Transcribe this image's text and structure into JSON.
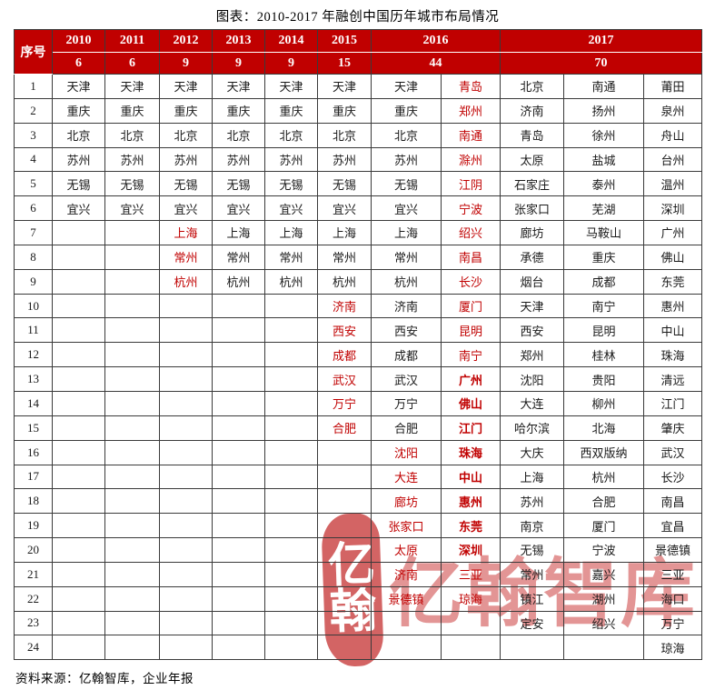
{
  "title": "图表：2010-2017 年融创中国历年城市布局情况",
  "source": "资料来源：亿翰智库，企业年报",
  "watermark": {
    "emblem_line1": "亿",
    "emblem_line2": "翰",
    "text": "亿翰智库"
  },
  "colors": {
    "header_bg": "#c00000",
    "header_text": "#ffffff",
    "new_city_red": "#c00000",
    "body_text": "#1a1a1a",
    "watermark_red": "rgba(202,52,52,0.52)"
  },
  "table": {
    "corner_label": "序号",
    "year_groups": [
      {
        "label": "2010",
        "count": "6",
        "span": 1
      },
      {
        "label": "2011",
        "count": "6",
        "span": 1
      },
      {
        "label": "2012",
        "count": "9",
        "span": 1
      },
      {
        "label": "2013",
        "count": "9",
        "span": 1
      },
      {
        "label": "2014",
        "count": "9",
        "span": 1
      },
      {
        "label": "2015",
        "count": "15",
        "span": 1
      },
      {
        "label": "2016",
        "count": "44",
        "span": 2
      },
      {
        "label": "2017",
        "count": "70",
        "span": 3
      }
    ],
    "rows": [
      {
        "no": "1",
        "cells": [
          "天津",
          "天津",
          "天津",
          "天津",
          "天津",
          "天津",
          "天津",
          {
            "t": "青岛",
            "red": true
          },
          "北京",
          "南通",
          "莆田"
        ]
      },
      {
        "no": "2",
        "cells": [
          "重庆",
          "重庆",
          "重庆",
          "重庆",
          "重庆",
          "重庆",
          "重庆",
          {
            "t": "郑州",
            "red": true
          },
          "济南",
          "扬州",
          "泉州"
        ]
      },
      {
        "no": "3",
        "cells": [
          "北京",
          "北京",
          "北京",
          "北京",
          "北京",
          "北京",
          "北京",
          {
            "t": "南通",
            "red": true
          },
          "青岛",
          "徐州",
          "舟山"
        ]
      },
      {
        "no": "4",
        "cells": [
          "苏州",
          "苏州",
          "苏州",
          "苏州",
          "苏州",
          "苏州",
          "苏州",
          {
            "t": "滁州",
            "red": true
          },
          "太原",
          "盐城",
          "台州"
        ]
      },
      {
        "no": "5",
        "cells": [
          "无锡",
          "无锡",
          "无锡",
          "无锡",
          "无锡",
          "无锡",
          "无锡",
          {
            "t": "江阴",
            "red": true
          },
          "石家庄",
          "泰州",
          "温州"
        ]
      },
      {
        "no": "6",
        "cells": [
          "宜兴",
          "宜兴",
          "宜兴",
          "宜兴",
          "宜兴",
          "宜兴",
          "宜兴",
          {
            "t": "宁波",
            "red": true
          },
          "张家口",
          "芜湖",
          "深圳"
        ]
      },
      {
        "no": "7",
        "cells": [
          "",
          "",
          {
            "t": "上海",
            "red": true
          },
          "上海",
          "上海",
          "上海",
          "上海",
          {
            "t": "绍兴",
            "red": true
          },
          "廊坊",
          "马鞍山",
          "广州"
        ]
      },
      {
        "no": "8",
        "cells": [
          "",
          "",
          {
            "t": "常州",
            "red": true
          },
          "常州",
          "常州",
          "常州",
          "常州",
          {
            "t": "南昌",
            "red": true
          },
          "承德",
          "重庆",
          "佛山"
        ]
      },
      {
        "no": "9",
        "cells": [
          "",
          "",
          {
            "t": "杭州",
            "red": true
          },
          "杭州",
          "杭州",
          "杭州",
          "杭州",
          {
            "t": "长沙",
            "red": true
          },
          "烟台",
          "成都",
          "东莞"
        ]
      },
      {
        "no": "10",
        "cells": [
          "",
          "",
          "",
          "",
          "",
          {
            "t": "济南",
            "red": true
          },
          "济南",
          {
            "t": "厦门",
            "red": true
          },
          "天津",
          "南宁",
          "惠州"
        ]
      },
      {
        "no": "11",
        "cells": [
          "",
          "",
          "",
          "",
          "",
          {
            "t": "西安",
            "red": true
          },
          "西安",
          {
            "t": "昆明",
            "red": true
          },
          "西安",
          "昆明",
          "中山"
        ]
      },
      {
        "no": "12",
        "cells": [
          "",
          "",
          "",
          "",
          "",
          {
            "t": "成都",
            "red": true
          },
          "成都",
          {
            "t": "南宁",
            "red": true
          },
          "郑州",
          "桂林",
          "珠海"
        ]
      },
      {
        "no": "13",
        "cells": [
          "",
          "",
          "",
          "",
          "",
          {
            "t": "武汉",
            "red": true
          },
          "武汉",
          {
            "t": "广州",
            "red": true,
            "bold": true
          },
          "沈阳",
          "贵阳",
          "清远"
        ]
      },
      {
        "no": "14",
        "cells": [
          "",
          "",
          "",
          "",
          "",
          {
            "t": "万宁",
            "red": true
          },
          "万宁",
          {
            "t": "佛山",
            "red": true,
            "bold": true
          },
          "大连",
          "柳州",
          "江门"
        ]
      },
      {
        "no": "15",
        "cells": [
          "",
          "",
          "",
          "",
          "",
          {
            "t": "合肥",
            "red": true
          },
          "合肥",
          {
            "t": "江门",
            "red": true,
            "bold": true
          },
          "哈尔滨",
          "北海",
          "肇庆"
        ]
      },
      {
        "no": "16",
        "cells": [
          "",
          "",
          "",
          "",
          "",
          "",
          {
            "t": "沈阳",
            "red": true
          },
          {
            "t": "珠海",
            "red": true,
            "bold": true
          },
          "大庆",
          "西双版纳",
          "武汉"
        ]
      },
      {
        "no": "17",
        "cells": [
          "",
          "",
          "",
          "",
          "",
          "",
          {
            "t": "大连",
            "red": true
          },
          {
            "t": "中山",
            "red": true,
            "bold": true
          },
          "上海",
          "杭州",
          "长沙"
        ]
      },
      {
        "no": "18",
        "cells": [
          "",
          "",
          "",
          "",
          "",
          "",
          {
            "t": "廊坊",
            "red": true
          },
          {
            "t": "惠州",
            "red": true,
            "bold": true
          },
          "苏州",
          "合肥",
          "南昌"
        ]
      },
      {
        "no": "19",
        "cells": [
          "",
          "",
          "",
          "",
          "",
          "",
          {
            "t": "张家口",
            "red": true
          },
          {
            "t": "东莞",
            "red": true,
            "bold": true
          },
          "南京",
          "厦门",
          "宜昌"
        ]
      },
      {
        "no": "20",
        "cells": [
          "",
          "",
          "",
          "",
          "",
          "",
          {
            "t": "太原",
            "red": true
          },
          {
            "t": "深圳",
            "red": true,
            "bold": true
          },
          "无锡",
          "宁波",
          "景德镇"
        ]
      },
      {
        "no": "21",
        "cells": [
          "",
          "",
          "",
          "",
          "",
          "",
          {
            "t": "济南",
            "red": true
          },
          {
            "t": "三亚",
            "red": true
          },
          "常州",
          "嘉兴",
          "三亚"
        ]
      },
      {
        "no": "22",
        "cells": [
          "",
          "",
          "",
          "",
          "",
          "",
          {
            "t": "景德镇",
            "red": true
          },
          {
            "t": "琼海",
            "red": true
          },
          "镇江",
          "湖州",
          "海口"
        ]
      },
      {
        "no": "23",
        "cells": [
          "",
          "",
          "",
          "",
          "",
          "",
          "",
          "",
          "定安",
          "绍兴",
          "万宁"
        ]
      },
      {
        "no": "24",
        "cells": [
          "",
          "",
          "",
          "",
          "",
          "",
          "",
          "",
          "",
          "",
          "琼海"
        ]
      }
    ]
  }
}
